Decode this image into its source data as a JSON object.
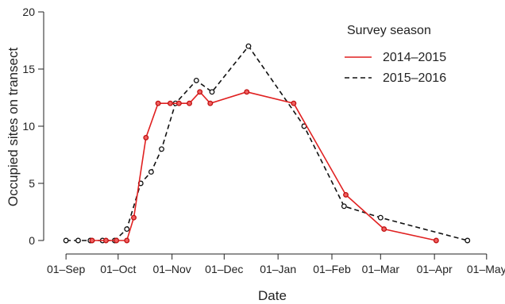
{
  "chart_data": {
    "type": "line",
    "xlabel": "Date",
    "ylabel": "Occupied sites on transect",
    "ylim": [
      0,
      20
    ],
    "yticks": [
      0,
      5,
      10,
      15,
      20
    ],
    "xlim": [
      "2014-08-26",
      "2015-05-02"
    ],
    "xticks": [
      {
        "date": "2014-09-01",
        "label": "01–Sep"
      },
      {
        "date": "2014-10-01",
        "label": "01–Oct"
      },
      {
        "date": "2014-11-01",
        "label": "01–Nov"
      },
      {
        "date": "2014-12-01",
        "label": "01–Dec"
      },
      {
        "date": "2015-01-01",
        "label": "01–Jan"
      },
      {
        "date": "2015-02-01",
        "label": "01–Feb"
      },
      {
        "date": "2015-03-01",
        "label": "01–Mar"
      },
      {
        "date": "2015-04-01",
        "label": "01–Apr"
      },
      {
        "date": "2015-05-01",
        "label": "01–May"
      }
    ],
    "grid": false,
    "legend": {
      "title": "Survey season",
      "position": "top-right"
    },
    "series": [
      {
        "name": "2014–2015",
        "color": "#e02020",
        "line_style": "solid",
        "points": [
          {
            "x": "2014-09-16",
            "y": 0
          },
          {
            "x": "2014-09-24",
            "y": 0
          },
          {
            "x": "2014-09-30",
            "y": 0
          },
          {
            "x": "2014-10-06",
            "y": 0
          },
          {
            "x": "2014-10-10",
            "y": 2
          },
          {
            "x": "2014-10-17",
            "y": 9
          },
          {
            "x": "2014-10-24",
            "y": 12
          },
          {
            "x": "2014-10-31",
            "y": 12
          },
          {
            "x": "2014-11-05",
            "y": 12
          },
          {
            "x": "2014-11-11",
            "y": 12
          },
          {
            "x": "2014-11-17",
            "y": 13
          },
          {
            "x": "2014-11-23",
            "y": 12
          },
          {
            "x": "2014-12-14",
            "y": 13
          },
          {
            "x": "2015-01-10",
            "y": 12
          },
          {
            "x": "2015-02-09",
            "y": 4
          },
          {
            "x": "2015-03-03",
            "y": 1
          },
          {
            "x": "2015-04-02",
            "y": 0
          }
        ]
      },
      {
        "name": "2015–2016",
        "color": "#111111",
        "line_style": "dashed",
        "points": [
          {
            "x": "2014-09-01",
            "y": 0
          },
          {
            "x": "2014-09-08",
            "y": 0
          },
          {
            "x": "2014-09-15",
            "y": 0
          },
          {
            "x": "2014-09-22",
            "y": 0
          },
          {
            "x": "2014-09-29",
            "y": 0
          },
          {
            "x": "2014-10-06",
            "y": 1
          },
          {
            "x": "2014-10-14",
            "y": 5
          },
          {
            "x": "2014-10-20",
            "y": 6
          },
          {
            "x": "2014-10-26",
            "y": 8
          },
          {
            "x": "2014-11-03",
            "y": 12
          },
          {
            "x": "2014-11-15",
            "y": 14
          },
          {
            "x": "2014-11-24",
            "y": 13
          },
          {
            "x": "2014-12-15",
            "y": 17
          },
          {
            "x": "2015-01-16",
            "y": 10
          },
          {
            "x": "2015-02-08",
            "y": 3
          },
          {
            "x": "2015-03-01",
            "y": 2
          },
          {
            "x": "2015-04-20",
            "y": 0
          }
        ]
      }
    ]
  }
}
